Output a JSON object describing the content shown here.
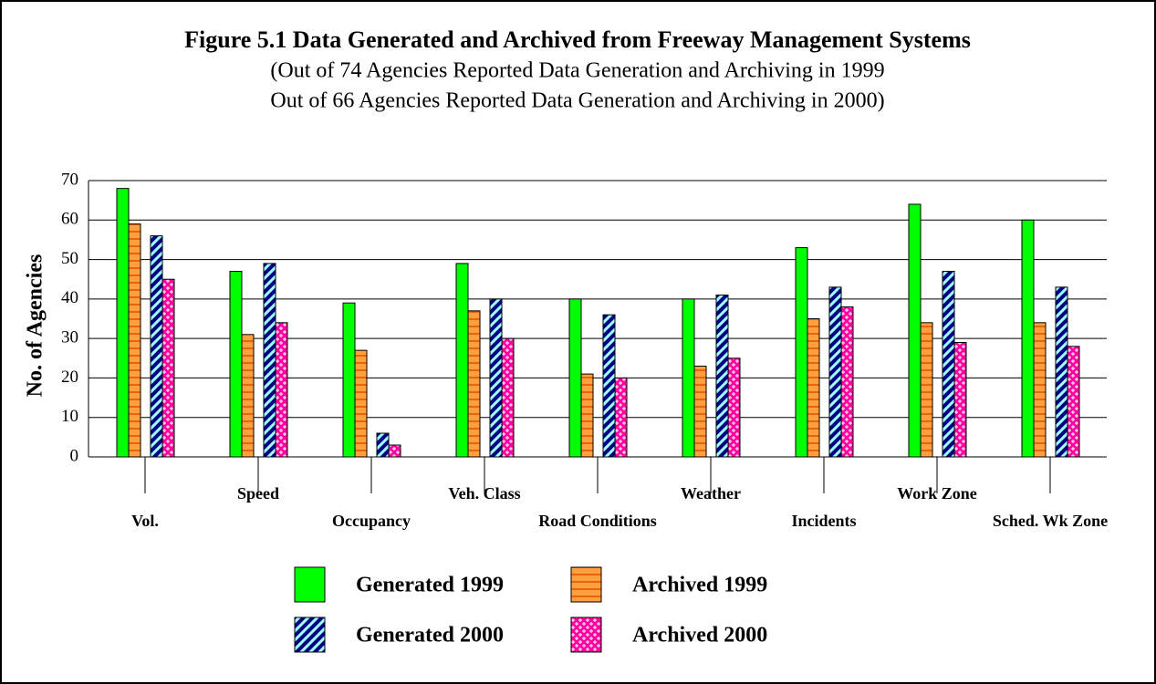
{
  "chart_data": {
    "type": "bar",
    "title": "Figure 5.1 Data Generated and Archived from Freeway Management Systems",
    "subtitle": [
      "(Out of 74 Agencies Reported Data Generation and Archiving in 1999",
      "Out of 66 Agencies Reported Data Generation and Archiving in 2000)"
    ],
    "y_label": "No. of Agencies",
    "categories": [
      "Vol.",
      "Speed",
      "Occupancy",
      "Veh. Class",
      "Road Conditions",
      "Weather",
      "Incidents",
      "Work Zone",
      "Sched. Wk Zone"
    ],
    "series": [
      {
        "name": "Generated 1999",
        "color": "#00ff00",
        "pattern": "solid",
        "values": [
          68,
          47,
          39,
          49,
          40,
          40,
          53,
          64,
          60
        ]
      },
      {
        "name": "Archived 1999",
        "color": "#ffa040",
        "pattern": "horizontal",
        "values": [
          59,
          31,
          27,
          37,
          21,
          23,
          35,
          34,
          34
        ]
      },
      {
        "name": "Generated 2000",
        "color": "#000080",
        "pattern": "diagonal",
        "values": [
          56,
          49,
          6,
          40,
          36,
          41,
          43,
          47,
          43
        ]
      },
      {
        "name": "Archived 2000",
        "color": "#ff00a0",
        "pattern": "crosshatch",
        "values": [
          45,
          34,
          3,
          30,
          20,
          25,
          38,
          29,
          28
        ]
      }
    ],
    "ylim": [
      0,
      70
    ],
    "yticks": [
      0,
      10,
      20,
      30,
      40,
      50,
      60,
      70
    ],
    "grid": true,
    "legend": "bottom"
  }
}
